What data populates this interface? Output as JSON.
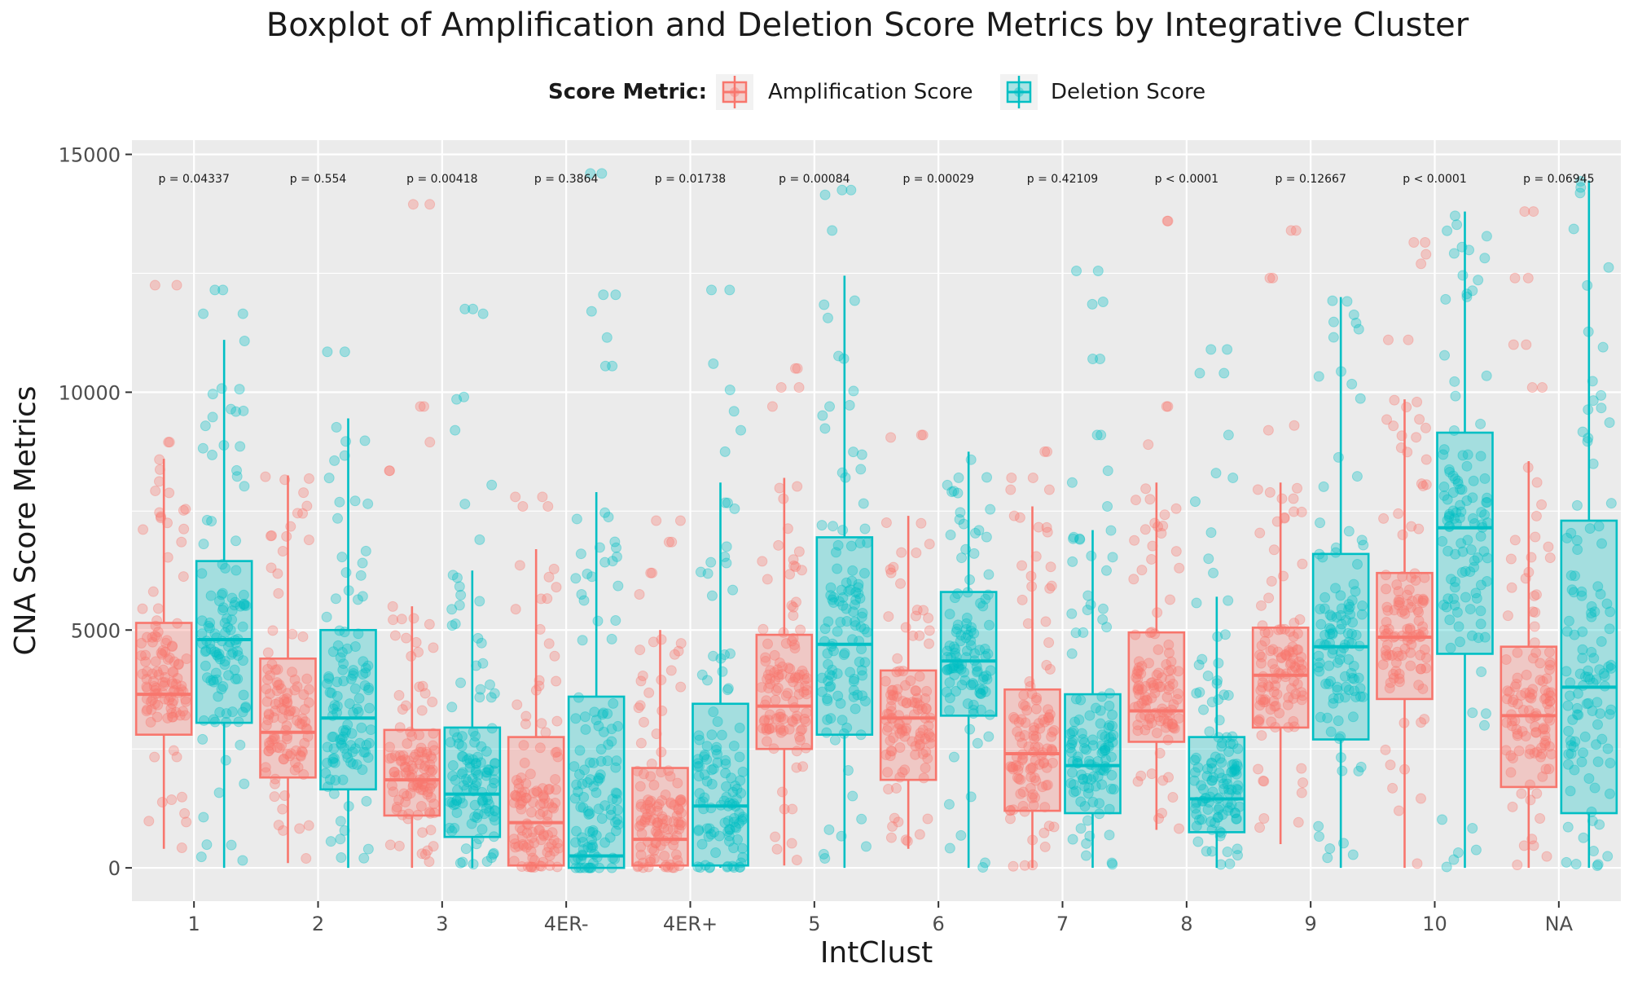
{
  "chart_data": {
    "type": "boxplot",
    "title": "Boxplot of Amplification and Deletion Score Metrics by Integrative Cluster",
    "xlabel": "IntClust",
    "ylabel": "CNA Score Metrics",
    "ylim": [
      -700,
      15300
    ],
    "yticks": [
      0,
      5000,
      10000,
      15000
    ],
    "grid": true,
    "legend": {
      "title": "Score Metric:",
      "position": "top",
      "entries": [
        "Amplification Score",
        "Deletion Score"
      ]
    },
    "colors": {
      "Amplification Score": "#F8766D",
      "Deletion Score": "#00BFC4"
    },
    "categories": [
      "1",
      "2",
      "3",
      "4ER-",
      "4ER+",
      "5",
      "6",
      "7",
      "8",
      "9",
      "10",
      "NA"
    ],
    "pvalues": [
      "p = 0.04337",
      "p = 0.554",
      "p = 0.00418",
      "p = 0.3864",
      "p = 0.01738",
      "p = 0.00084",
      "p = 0.00029",
      "p = 0.42109",
      "p < 0.0001",
      "p = 0.12667",
      "p < 0.0001",
      "p = 0.06945"
    ],
    "series": [
      {
        "name": "Amplification Score",
        "boxes": [
          {
            "whisker_low": 400,
            "q1": 2800,
            "median": 3650,
            "q3": 5150,
            "whisker_high": 8600,
            "outliers": [
              12250,
              12250,
              8950,
              8950
            ]
          },
          {
            "whisker_low": 100,
            "q1": 1900,
            "median": 2850,
            "q3": 4400,
            "whisker_high": 8250,
            "outliers": []
          },
          {
            "whisker_low": 0,
            "q1": 1100,
            "median": 1850,
            "q3": 2900,
            "whisker_high": 5500,
            "outliers": [
              13950,
              13950,
              9700,
              9700,
              8950,
              8350,
              8350
            ]
          },
          {
            "whisker_low": 0,
            "q1": 50,
            "median": 950,
            "q3": 2750,
            "whisker_high": 6700,
            "outliers": [
              7800,
              7800,
              7600,
              7600
            ]
          },
          {
            "whisker_low": 0,
            "q1": 50,
            "median": 600,
            "q3": 2100,
            "whisker_high": 5000,
            "outliers": [
              7300,
              7300,
              6850,
              6850,
              6200,
              6200,
              5750
            ]
          },
          {
            "whisker_low": 50,
            "q1": 2500,
            "median": 3400,
            "q3": 4900,
            "whisker_high": 8200,
            "outliers": [
              10500,
              10500,
              10100,
              10100,
              9700
            ]
          },
          {
            "whisker_low": 400,
            "q1": 1850,
            "median": 3150,
            "q3": 4150,
            "whisker_high": 7400,
            "outliers": [
              9100,
              9100,
              9050
            ]
          },
          {
            "whisker_low": 0,
            "q1": 1200,
            "median": 2400,
            "q3": 3750,
            "whisker_high": 7600,
            "outliers": [
              8750,
              8750,
              8200,
              8200,
              7950,
              7950
            ]
          },
          {
            "whisker_low": 800,
            "q1": 2650,
            "median": 3300,
            "q3": 4950,
            "whisker_high": 8100,
            "outliers": [
              13600,
              13600,
              9700,
              9700,
              8900
            ]
          },
          {
            "whisker_low": 500,
            "q1": 2950,
            "median": 4050,
            "q3": 5050,
            "whisker_high": 8100,
            "outliers": [
              13400,
              13400,
              12400,
              12400,
              9300,
              9200
            ]
          },
          {
            "whisker_low": 0,
            "q1": 3550,
            "median": 4850,
            "q3": 6200,
            "whisker_high": 9850,
            "outliers": [
              13150,
              13150,
              12900,
              12700,
              11100,
              11100
            ]
          },
          {
            "whisker_low": 0,
            "q1": 1700,
            "median": 3200,
            "q3": 4650,
            "whisker_high": 8550,
            "outliers": [
              13800,
              13800,
              12400,
              12400,
              11000,
              11000,
              10100,
              10100
            ]
          }
        ]
      },
      {
        "name": "Deletion Score",
        "boxes": [
          {
            "whisker_low": 0,
            "q1": 3050,
            "median": 4800,
            "q3": 6450,
            "whisker_high": 11100,
            "outliers": [
              12150,
              12150,
              11650,
              11650
            ]
          },
          {
            "whisker_low": 0,
            "q1": 1650,
            "median": 3150,
            "q3": 5000,
            "whisker_high": 9450,
            "outliers": [
              10850,
              10850
            ]
          },
          {
            "whisker_low": 0,
            "q1": 650,
            "median": 1550,
            "q3": 2950,
            "whisker_high": 6250,
            "outliers": [
              11750,
              11750,
              11650,
              9900,
              9850,
              9200,
              8050,
              7650,
              6900
            ]
          },
          {
            "whisker_low": 0,
            "q1": 0,
            "median": 250,
            "q3": 3600,
            "whisker_high": 7900,
            "outliers": [
              14600,
              14600,
              12050,
              12050,
              11700,
              11150,
              10550,
              10550
            ]
          },
          {
            "whisker_low": 0,
            "q1": 50,
            "median": 1300,
            "q3": 3450,
            "whisker_high": 8100,
            "outliers": [
              12150,
              12150,
              10600,
              10050,
              9600,
              9200,
              8750
            ]
          },
          {
            "whisker_low": 0,
            "q1": 2800,
            "median": 4700,
            "q3": 6950,
            "whisker_high": 12450,
            "outliers": [
              14250,
              14250,
              14150,
              13400
            ]
          },
          {
            "whisker_low": 0,
            "q1": 3200,
            "median": 4350,
            "q3": 5800,
            "whisker_high": 8750,
            "outliers": []
          },
          {
            "whisker_low": 0,
            "q1": 1150,
            "median": 2150,
            "q3": 3650,
            "whisker_high": 7100,
            "outliers": [
              12550,
              12550,
              11900,
              11850,
              10700,
              10700,
              9100,
              9100,
              8350,
              8100,
              7600
            ]
          },
          {
            "whisker_low": 0,
            "q1": 750,
            "median": 1450,
            "q3": 2750,
            "whisker_high": 5700,
            "outliers": [
              10900,
              10900,
              10400,
              10400,
              9100,
              8300,
              8200,
              7700,
              7050,
              6500,
              6200
            ]
          },
          {
            "whisker_low": 0,
            "q1": 2700,
            "median": 4650,
            "q3": 6600,
            "whisker_high": 12000,
            "outliers": []
          },
          {
            "whisker_low": 0,
            "q1": 4500,
            "median": 7150,
            "q3": 9150,
            "whisker_high": 13800,
            "outliers": []
          },
          {
            "whisker_low": 0,
            "q1": 1150,
            "median": 3800,
            "q3": 7300,
            "whisker_high": 14450,
            "outliers": []
          }
        ]
      }
    ]
  }
}
